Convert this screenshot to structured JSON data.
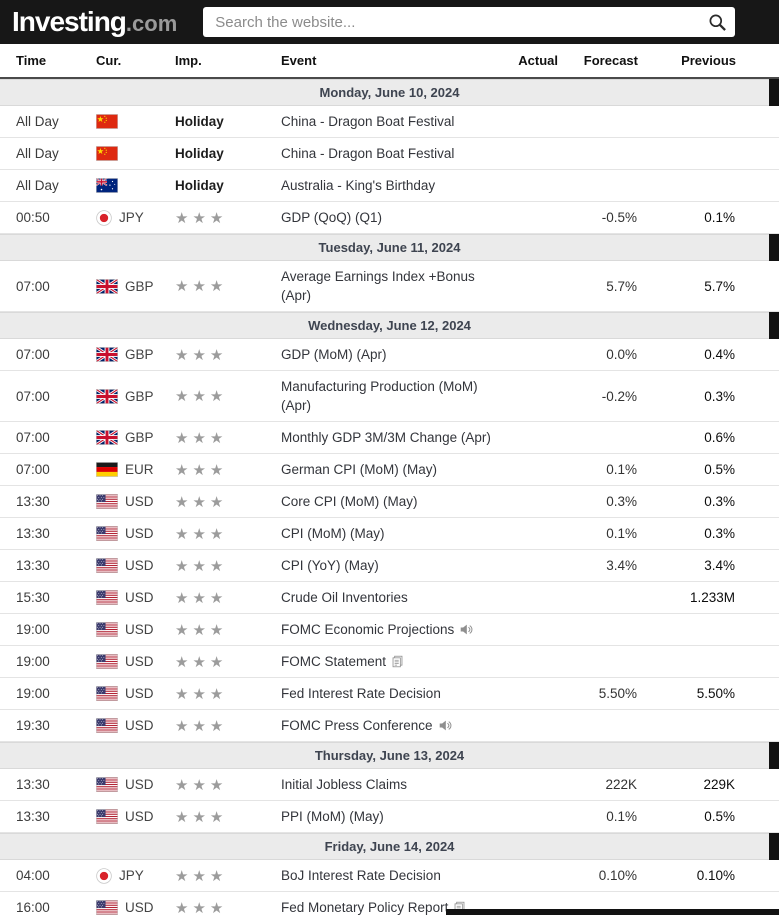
{
  "header": {
    "logo_text": "Investing",
    "logo_suffix": ".com",
    "search_placeholder": "Search the website..."
  },
  "table": {
    "columns": [
      "Time",
      "Cur.",
      "Imp.",
      "Event",
      "Actual",
      "Forecast",
      "Previous"
    ]
  },
  "sections": [
    {
      "date": "Monday, June 10, 2024",
      "rows": [
        {
          "time": "All Day",
          "flag": "china",
          "currency": "",
          "importance": "Holiday",
          "event": "China - Dragon Boat Festival",
          "icon": "",
          "actual": "",
          "forecast": "",
          "previous": ""
        },
        {
          "time": "All Day",
          "flag": "china",
          "currency": "",
          "importance": "Holiday",
          "event": "China - Dragon Boat Festival",
          "icon": "",
          "actual": "",
          "forecast": "",
          "previous": ""
        },
        {
          "time": "All Day",
          "flag": "australia",
          "currency": "",
          "importance": "Holiday",
          "event": "Australia - King's Birthday",
          "icon": "",
          "actual": "",
          "forecast": "",
          "previous": ""
        },
        {
          "time": "00:50",
          "flag": "japan",
          "currency": "JPY",
          "importance": 3,
          "event": "GDP (QoQ) (Q1)",
          "icon": "",
          "actual": "",
          "forecast": "-0.5%",
          "previous": "0.1%"
        }
      ]
    },
    {
      "date": "Tuesday, June 11, 2024",
      "rows": [
        {
          "time": "07:00",
          "flag": "uk",
          "currency": "GBP",
          "importance": 3,
          "event": "Average Earnings Index +Bonus (Apr)",
          "icon": "",
          "actual": "",
          "forecast": "5.7%",
          "previous": "5.7%"
        }
      ]
    },
    {
      "date": "Wednesday, June 12, 2024",
      "rows": [
        {
          "time": "07:00",
          "flag": "uk",
          "currency": "GBP",
          "importance": 3,
          "event": "GDP (MoM) (Apr)",
          "icon": "",
          "actual": "",
          "forecast": "0.0%",
          "previous": "0.4%"
        },
        {
          "time": "07:00",
          "flag": "uk",
          "currency": "GBP",
          "importance": 3,
          "event": "Manufacturing Production (MoM) (Apr)",
          "icon": "",
          "actual": "",
          "forecast": "-0.2%",
          "previous": "0.3%"
        },
        {
          "time": "07:00",
          "flag": "uk",
          "currency": "GBP",
          "importance": 3,
          "event": "Monthly GDP 3M/3M Change (Apr)",
          "icon": "",
          "actual": "",
          "forecast": "",
          "previous": "0.6%"
        },
        {
          "time": "07:00",
          "flag": "germany",
          "currency": "EUR",
          "importance": 3,
          "event": "German CPI (MoM) (May)",
          "icon": "",
          "actual": "",
          "forecast": "0.1%",
          "previous": "0.5%"
        },
        {
          "time": "13:30",
          "flag": "usa",
          "currency": "USD",
          "importance": 3,
          "event": "Core CPI (MoM) (May)",
          "icon": "",
          "actual": "",
          "forecast": "0.3%",
          "previous": "0.3%"
        },
        {
          "time": "13:30",
          "flag": "usa",
          "currency": "USD",
          "importance": 3,
          "event": "CPI (MoM) (May)",
          "icon": "",
          "actual": "",
          "forecast": "0.1%",
          "previous": "0.3%"
        },
        {
          "time": "13:30",
          "flag": "usa",
          "currency": "USD",
          "importance": 3,
          "event": "CPI (YoY) (May)",
          "icon": "",
          "actual": "",
          "forecast": "3.4%",
          "previous": "3.4%"
        },
        {
          "time": "15:30",
          "flag": "usa",
          "currency": "USD",
          "importance": 3,
          "event": "Crude Oil Inventories",
          "icon": "",
          "actual": "",
          "forecast": "",
          "previous": "1.233M"
        },
        {
          "time": "19:00",
          "flag": "usa",
          "currency": "USD",
          "importance": 3,
          "event": "FOMC Economic Projections",
          "icon": "speaker",
          "actual": "",
          "forecast": "",
          "previous": ""
        },
        {
          "time": "19:00",
          "flag": "usa",
          "currency": "USD",
          "importance": 3,
          "event": "FOMC Statement",
          "icon": "document",
          "actual": "",
          "forecast": "",
          "previous": ""
        },
        {
          "time": "19:00",
          "flag": "usa",
          "currency": "USD",
          "importance": 3,
          "event": "Fed Interest Rate Decision",
          "icon": "",
          "actual": "",
          "forecast": "5.50%",
          "previous": "5.50%"
        },
        {
          "time": "19:30",
          "flag": "usa",
          "currency": "USD",
          "importance": 3,
          "event": "FOMC Press Conference",
          "icon": "speaker",
          "actual": "",
          "forecast": "",
          "previous": ""
        }
      ]
    },
    {
      "date": "Thursday, June 13, 2024",
      "rows": [
        {
          "time": "13:30",
          "flag": "usa",
          "currency": "USD",
          "importance": 3,
          "event": "Initial Jobless Claims",
          "icon": "",
          "actual": "",
          "forecast": "222K",
          "previous": "229K"
        },
        {
          "time": "13:30",
          "flag": "usa",
          "currency": "USD",
          "importance": 3,
          "event": "PPI (MoM) (May)",
          "icon": "",
          "actual": "",
          "forecast": "0.1%",
          "previous": "0.5%"
        }
      ]
    },
    {
      "date": "Friday, June 14, 2024",
      "rows": [
        {
          "time": "04:00",
          "flag": "japan",
          "currency": "JPY",
          "importance": 3,
          "event": "BoJ Interest Rate Decision",
          "icon": "",
          "actual": "",
          "forecast": "0.10%",
          "previous": "0.10%"
        },
        {
          "time": "16:00",
          "flag": "usa",
          "currency": "USD",
          "importance": 3,
          "event": "Fed Monetary Policy Report",
          "icon": "document",
          "actual": "",
          "forecast": "",
          "previous": ""
        }
      ]
    }
  ],
  "colors": {
    "topbar_bg": "#171717",
    "section_header_bg": "#ebebeb",
    "star_color": "#9c9c9c",
    "row_border": "#e4e4e4",
    "event_text": "#33353b"
  }
}
